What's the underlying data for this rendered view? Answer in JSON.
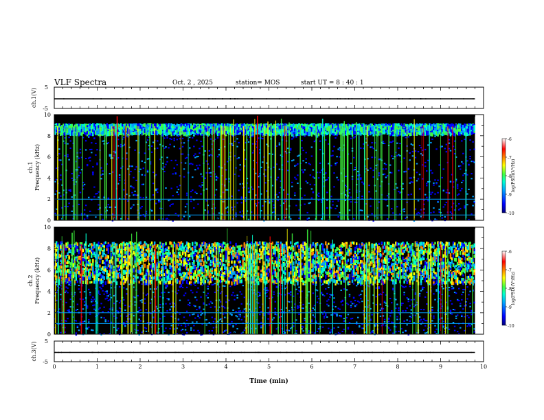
{
  "header": {
    "title": "VLF Spectra",
    "date": "Oct. 2 , 2025",
    "station": "station= MOS",
    "start": "start UT = 8 : 40 : 1"
  },
  "colors": {
    "background": "#000000",
    "cmap": [
      "#00007a",
      "#0000ff",
      "#00a0ff",
      "#00ffd0",
      "#40ff40",
      "#ffff00",
      "#ff8000",
      "#ff0000",
      "#ffffff"
    ]
  },
  "chart_data": [
    {
      "type": "line",
      "panel": "ch1-waveform",
      "ylabel": "ch.1(V)",
      "ylim": [
        -5,
        5
      ],
      "yticks": [
        "5",
        "-5"
      ],
      "x": [
        0,
        9.8
      ],
      "y": [
        0,
        0
      ]
    },
    {
      "type": "heatmap",
      "panel": "ch1-spectrogram",
      "ylabel": "ch.1\nFrequency (kHz)",
      "ylim": [
        0,
        10
      ],
      "yticks": [
        "0",
        "2",
        "4",
        "6",
        "8",
        "10"
      ],
      "xlim": [
        0,
        9.8
      ],
      "band_khz": [
        8.2,
        9.1
      ],
      "lines_khz": [
        2.0,
        0.5
      ],
      "colorbar": {
        "label": "log(PSD)(V²/Hz)",
        "ticks": [
          "-6",
          "-7",
          "-8",
          "-9",
          "-10"
        ],
        "range": [
          -10,
          -6
        ]
      }
    },
    {
      "type": "heatmap",
      "panel": "ch2-spectrogram",
      "ylabel": "ch.2\nFrequency (kHz)",
      "ylim": [
        0,
        10
      ],
      "yticks": [
        "0",
        "2",
        "4",
        "6",
        "8",
        "10"
      ],
      "xlim": [
        0,
        9.8
      ],
      "band_khz": [
        4.8,
        8.6
      ],
      "lines_khz": [
        1.0,
        2.0
      ],
      "colorbar": {
        "label": "log(PSD)(V²/Hz)",
        "ticks": [
          "-6",
          "-7",
          "-8",
          "-9",
          "-10"
        ],
        "range": [
          -10,
          -6
        ]
      }
    },
    {
      "type": "line",
      "panel": "ch3-waveform",
      "ylabel": "ch.3(V)",
      "ylim": [
        -5,
        5
      ],
      "yticks": [
        "5",
        "-5"
      ],
      "x": [
        0,
        9.8
      ],
      "y": [
        0,
        0
      ]
    }
  ],
  "x_axis": {
    "label": "Time (min)",
    "xlim": [
      0,
      10
    ],
    "ticks": [
      "0",
      "1",
      "2",
      "3",
      "4",
      "5",
      "6",
      "7",
      "8",
      "9",
      "10"
    ]
  }
}
